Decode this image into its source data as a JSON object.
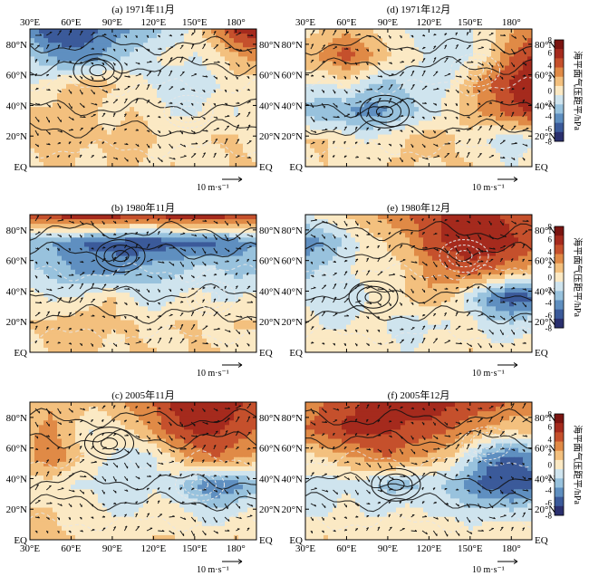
{
  "chart_data": {
    "type": "heatmap",
    "panels": [
      {
        "title": "(a) 1971年11月",
        "field": [
          [
            -5,
            -7,
            -7,
            -6,
            -5,
            -4,
            -3,
            -2,
            0,
            3,
            6,
            7
          ],
          [
            -2,
            -4,
            -5,
            -5,
            -3,
            -2,
            -1,
            0,
            -1,
            0,
            2,
            3
          ],
          [
            -1,
            0,
            1,
            2,
            1,
            0,
            -1,
            -2,
            -2,
            -1,
            0,
            0
          ],
          [
            1,
            1,
            2,
            1,
            0,
            1,
            0,
            -1,
            -1,
            0,
            -1,
            0
          ],
          [
            1,
            2,
            1,
            1,
            1,
            2,
            1,
            0,
            0,
            1,
            1,
            0
          ],
          [
            0,
            1,
            1,
            0,
            1,
            1,
            0,
            1,
            0,
            0,
            1,
            1
          ]
        ]
      },
      {
        "title": "(d) 1971年12月",
        "field": [
          [
            0,
            1,
            2,
            1,
            0,
            -1,
            -2,
            -2,
            -1,
            0,
            2,
            3
          ],
          [
            2,
            3,
            5,
            3,
            1,
            0,
            -1,
            -2,
            -1,
            1,
            4,
            6
          ],
          [
            -1,
            -1,
            0,
            -2,
            -3,
            -2,
            -1,
            -1,
            2,
            4,
            6,
            7
          ],
          [
            -3,
            -4,
            -4,
            -5,
            -4,
            -3,
            -2,
            0,
            2,
            3,
            5,
            6
          ],
          [
            1,
            1,
            0,
            -1,
            0,
            1,
            2,
            1,
            0,
            -1,
            -2,
            -1
          ],
          [
            0,
            1,
            0,
            0,
            1,
            1,
            0,
            1,
            1,
            0,
            -1,
            0
          ]
        ]
      },
      {
        "title": "(b) 1980年11月",
        "field": [
          [
            5,
            6,
            7,
            7,
            7,
            6,
            6,
            7,
            7,
            7,
            6,
            6
          ],
          [
            -3,
            -4,
            -5,
            -6,
            -6,
            -7,
            -7,
            -6,
            -6,
            -6,
            -5,
            -4
          ],
          [
            -2,
            -3,
            -4,
            -5,
            -5,
            -4,
            -3,
            -3,
            -2,
            -2,
            -3,
            -3
          ],
          [
            0,
            -1,
            -1,
            0,
            1,
            -1,
            -2,
            -1,
            0,
            -1,
            -1,
            0
          ],
          [
            1,
            1,
            2,
            2,
            1,
            1,
            0,
            1,
            1,
            0,
            1,
            1
          ],
          [
            0,
            1,
            1,
            1,
            0,
            1,
            1,
            0,
            1,
            1,
            0,
            0
          ]
        ]
      },
      {
        "title": "(e) 1980年12月",
        "field": [
          [
            -1,
            0,
            1,
            2,
            3,
            4,
            5,
            6,
            7,
            6,
            5,
            4
          ],
          [
            -5,
            -4,
            -2,
            0,
            1,
            2,
            5,
            6,
            7,
            7,
            6,
            5
          ],
          [
            -3,
            -2,
            -1,
            0,
            0,
            1,
            3,
            4,
            5,
            4,
            3,
            2
          ],
          [
            -1,
            -2,
            -2,
            -1,
            0,
            1,
            2,
            1,
            -2,
            -5,
            -7,
            -6
          ],
          [
            0,
            -1,
            -1,
            0,
            -1,
            -2,
            -1,
            -1,
            0,
            -2,
            -2,
            -1
          ],
          [
            0,
            0,
            1,
            0,
            0,
            -1,
            0,
            0,
            1,
            0,
            0,
            0
          ]
        ]
      },
      {
        "title": "(c) 2005年11月",
        "field": [
          [
            1,
            2,
            2,
            1,
            2,
            3,
            4,
            6,
            7,
            7,
            6,
            5
          ],
          [
            2,
            3,
            1,
            -1,
            0,
            1,
            3,
            5,
            6,
            6,
            5,
            4
          ],
          [
            2,
            4,
            2,
            0,
            -1,
            -2,
            -1,
            1,
            3,
            4,
            3,
            2
          ],
          [
            0,
            0,
            -1,
            -1,
            -2,
            -2,
            -1,
            -2,
            -4,
            -6,
            -5,
            -3
          ],
          [
            1,
            1,
            0,
            0,
            -1,
            -1,
            0,
            0,
            -1,
            -2,
            -1,
            0
          ],
          [
            1,
            1,
            1,
            0,
            1,
            0,
            1,
            1,
            0,
            0,
            1,
            0
          ]
        ]
      },
      {
        "title": "(f) 2005年12月",
        "field": [
          [
            3,
            4,
            5,
            6,
            7,
            7,
            7,
            6,
            5,
            5,
            4,
            3
          ],
          [
            4,
            5,
            6,
            6,
            6,
            5,
            5,
            4,
            3,
            2,
            1,
            2
          ],
          [
            0,
            1,
            2,
            3,
            4,
            3,
            2,
            1,
            -2,
            -5,
            -6,
            -5
          ],
          [
            -1,
            -2,
            -1,
            -2,
            -3,
            -3,
            -2,
            -3,
            -5,
            -7,
            -7,
            -6
          ],
          [
            -1,
            -1,
            0,
            -1,
            -1,
            0,
            -1,
            -1,
            -2,
            -1,
            -2,
            -1
          ],
          [
            0,
            1,
            0,
            0,
            1,
            0,
            0,
            1,
            0,
            0,
            1,
            0
          ]
        ]
      }
    ],
    "x_ticks": [
      "30°E",
      "60°E",
      "90°E",
      "120°E",
      "150°E",
      "180°"
    ],
    "y_ticks": [
      "80°N",
      "60°N",
      "40°N",
      "20°N",
      "EQ"
    ],
    "xlim": [
      30,
      195
    ],
    "ylim": [
      0,
      90
    ],
    "reference_vector": "10 m·s⁻¹",
    "colorbar": {
      "label": "海平面气压距平/hPa",
      "ticks": [
        "8",
        "6",
        "4",
        "2",
        "0",
        "-2",
        "-4",
        "-6",
        "-8"
      ],
      "range": [
        -8,
        8
      ]
    },
    "colors": {
      "scale": [
        "#2a2f6e",
        "#3b5a9a",
        "#5f8fc0",
        "#98c2dd",
        "#cfe4ee",
        "#fbe9c4",
        "#f3c07e",
        "#e08a46",
        "#c5502c",
        "#a52a1d",
        "#7a1410"
      ],
      "contour": "#111111",
      "contour_dashed": "#e6e6e6",
      "arrow": "#111111"
    }
  }
}
